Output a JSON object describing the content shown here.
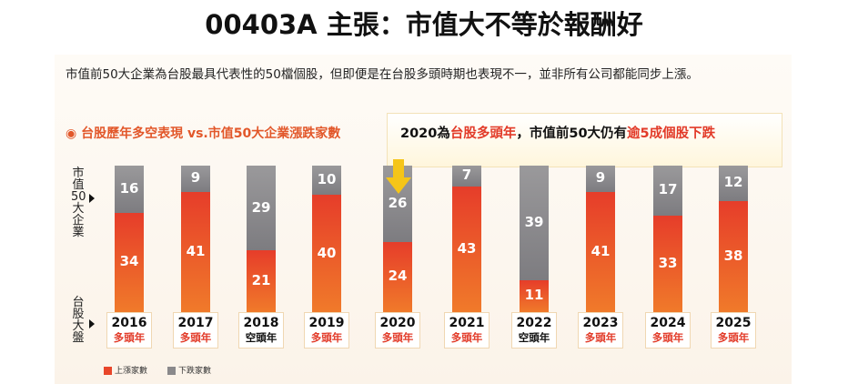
{
  "title": "00403A 主張：市值大不等於報酬好",
  "description": "市值前50大企業為台股最具代表性的50檔個股，但即便是在台股多頭時期也表現不一，並非所有公司都能同步上漲。",
  "callout": {
    "p1": "2020為",
    "p2": "台股多頭年",
    "p3": "，市值前50大仍有",
    "p4": "逾5成個股下跌"
  },
  "colors": {
    "up": "#e8462a",
    "down": "#8a898b",
    "accent": "#e23a28",
    "arrow": "#f5c518"
  },
  "chart_data": {
    "type": "bar",
    "stacked": true,
    "title": "台股歷年多空表現 vs.市值50大企業漲跌家數",
    "row_labels": {
      "top": "市值50大企業",
      "bottom": "台股大盤"
    },
    "categories": [
      "2016",
      "2017",
      "2018",
      "2019",
      "2020",
      "2021",
      "2022",
      "2023",
      "2024",
      "2025"
    ],
    "market": [
      "多頭年",
      "多頭年",
      "空頭年",
      "多頭年",
      "多頭年",
      "多頭年",
      "空頭年",
      "多頭年",
      "多頭年",
      "多頭年"
    ],
    "series": [
      {
        "name": "上漲家數",
        "values": [
          34,
          41,
          21,
          40,
          24,
          43,
          11,
          41,
          33,
          38
        ]
      },
      {
        "name": "下跌家數",
        "values": [
          16,
          9,
          29,
          10,
          26,
          7,
          39,
          9,
          17,
          12
        ]
      }
    ],
    "ylim": [
      0,
      50
    ],
    "legend": "bottom-left"
  }
}
